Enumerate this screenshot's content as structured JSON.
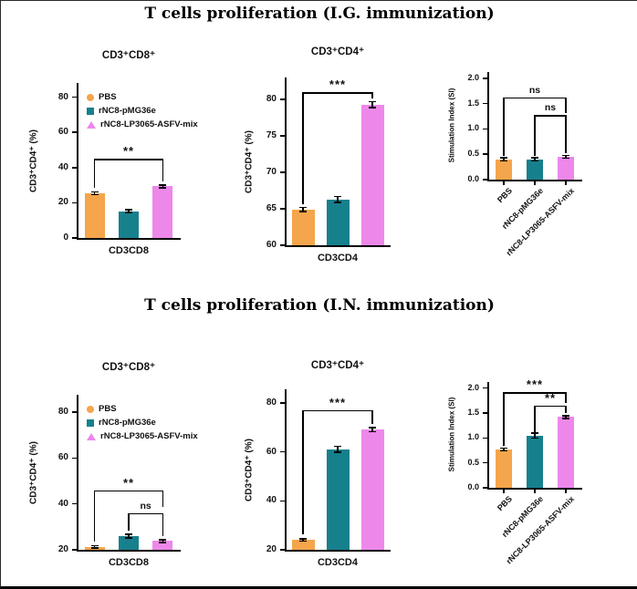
{
  "sections": {
    "ig": {
      "title": "T cells proliferation (I.G. immunization)"
    },
    "in": {
      "title": "T cells proliferation (I.N. immunization)"
    }
  },
  "legend": {
    "items": [
      {
        "label": "PBS",
        "marker": "circle",
        "color": "#F5A54B"
      },
      {
        "label": "rNC8-pMG36e",
        "marker": "square",
        "color": "#17808D"
      },
      {
        "label": "rNC8-LP3065-ASFV-mix",
        "marker": "triangle",
        "color": "#EE87EA"
      }
    ]
  },
  "palette": {
    "bar1": "#F5A54B",
    "bar2": "#17808D",
    "bar3": "#EE87EA",
    "axis": "#000000"
  },
  "chart_data": [
    {
      "id": "chart-ig-cd8",
      "type": "bar",
      "title": "CD3⁺CD8⁺",
      "ylabel": "CD3⁺CD4⁺ (%)",
      "xlabel": "CD3CD8",
      "ylim": [
        0,
        86
      ],
      "yticks": [
        0,
        20,
        40,
        60,
        80
      ],
      "ytick_labels": [
        "0",
        "20",
        "40",
        "60",
        "80"
      ],
      "categories": [
        "PBS",
        "rNC8-pMG36e",
        "rNC8-LP3065-ASFV-mix"
      ],
      "values": [
        25.3,
        15.2,
        29.3
      ],
      "errors": [
        0.8,
        0.8,
        0.8
      ],
      "significance": [
        {
          "i1": 0,
          "i2": 2,
          "y": 45,
          "label": "**"
        }
      ],
      "legend": true,
      "rotated_labels": false
    },
    {
      "id": "chart-ig-cd4",
      "type": "bar",
      "title": "CD3⁺CD4⁺",
      "ylabel": "CD3⁺CD4⁺ (%)",
      "xlabel": "CD3CD4",
      "ylim": [
        60,
        82.5
      ],
      "yticks": [
        60,
        65,
        70,
        75,
        80
      ],
      "ytick_labels": [
        "60",
        "65",
        "70",
        "75",
        "80"
      ],
      "categories": [
        "PBS",
        "rNC8-pMG36e",
        "rNC8-LP3065-ASFV-mix"
      ],
      "values": [
        64.9,
        66.3,
        79.3
      ],
      "errors": [
        0.3,
        0.4,
        0.4
      ],
      "significance": [
        {
          "i1": 0,
          "i2": 2,
          "y": 81,
          "label": "***"
        }
      ],
      "legend": false,
      "rotated_labels": false
    },
    {
      "id": "chart-ig-si",
      "type": "bar",
      "title": "",
      "ylabel": "Stimulation Index (SI)",
      "xlabel": "",
      "ylim": [
        0,
        2.05
      ],
      "yticks": [
        0,
        0.5,
        1.0,
        1.5,
        2.0
      ],
      "ytick_labels": [
        "0.0",
        "0.5",
        "1.0",
        "1.5",
        "2.0"
      ],
      "categories": [
        "PBS",
        "rNC8-pMG36e",
        "rNC8-LP3065-ASFV-mix"
      ],
      "values": [
        0.4,
        0.4,
        0.45
      ],
      "errors": [
        0.03,
        0.03,
        0.03
      ],
      "significance": [
        {
          "i1": 0,
          "i2": 2,
          "y": 1.62,
          "label": "ns",
          "leg2_to": 1.32
        },
        {
          "i1": 1,
          "i2": 2,
          "y": 1.27,
          "label": "ns"
        }
      ],
      "legend": false,
      "rotated_labels": true
    },
    {
      "id": "chart-in-cd8",
      "type": "bar",
      "title": "CD3⁺CD8⁺",
      "ylabel": "CD3⁺CD4⁺ (%)",
      "xlabel": "CD3CD8",
      "ylim": [
        20,
        86
      ],
      "yticks": [
        20,
        40,
        60,
        80
      ],
      "ytick_labels": [
        "20",
        "40",
        "60",
        "80"
      ],
      "categories": [
        "PBS",
        "rNC8-pMG36e",
        "rNC8-LP3065-ASFV-mix"
      ],
      "values": [
        21.3,
        26.0,
        23.8
      ],
      "errors": [
        0.5,
        0.8,
        0.6
      ],
      "significance": [
        {
          "i1": 0,
          "i2": 2,
          "y": 46,
          "label": "**",
          "leg2_to": 38.5
        },
        {
          "i1": 1,
          "i2": 2,
          "y": 36,
          "label": "ns"
        }
      ],
      "legend": true,
      "rotated_labels": false
    },
    {
      "id": "chart-in-cd4",
      "type": "bar",
      "title": "CD3⁺CD4⁺",
      "ylabel": "CD3⁺CD4⁺ (%)",
      "xlabel": "CD3CD4",
      "ylim": [
        20,
        84
      ],
      "yticks": [
        20,
        40,
        60,
        80
      ],
      "ytick_labels": [
        "20",
        "40",
        "60",
        "80"
      ],
      "categories": [
        "PBS",
        "rNC8-pMG36e",
        "rNC8-LP3065-ASFV-mix"
      ],
      "values": [
        24.0,
        61.0,
        69.0
      ],
      "errors": [
        0.5,
        1.2,
        0.8
      ],
      "significance": [
        {
          "i1": 0,
          "i2": 2,
          "y": 77,
          "label": "***"
        }
      ],
      "legend": false,
      "rotated_labels": false
    },
    {
      "id": "chart-in-si",
      "type": "bar",
      "title": "",
      "ylabel": "Stimulation Index (SI)",
      "xlabel": "",
      "ylim": [
        0,
        2.05
      ],
      "yticks": [
        0,
        0.5,
        1.0,
        1.5,
        2.0
      ],
      "ytick_labels": [
        "0.0",
        "0.5",
        "1.0",
        "1.5",
        "2.0"
      ],
      "categories": [
        "PBS",
        "rNC8-pMG36e",
        "rNC8-LP3065-ASFV-mix"
      ],
      "values": [
        0.77,
        1.05,
        1.42
      ],
      "errors": [
        0.03,
        0.05,
        0.03
      ],
      "significance": [
        {
          "i1": 0,
          "i2": 2,
          "y": 1.92,
          "label": "***",
          "leg2_to": 1.7
        },
        {
          "i1": 1,
          "i2": 2,
          "y": 1.65,
          "label": "**"
        }
      ],
      "legend": false,
      "rotated_labels": true
    }
  ]
}
